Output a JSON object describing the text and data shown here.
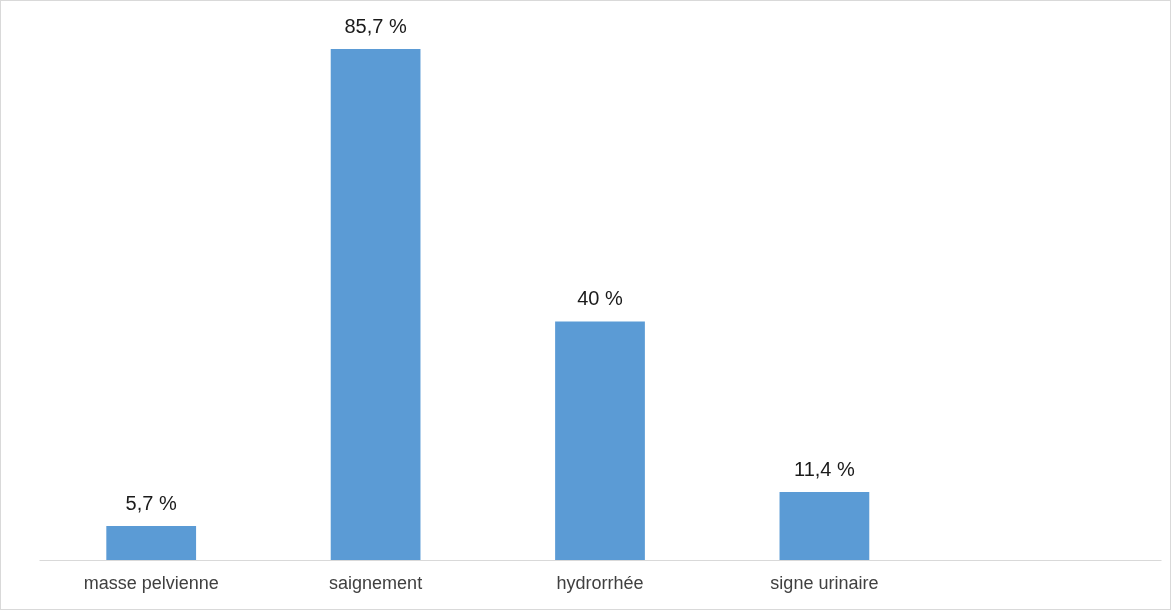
{
  "chart_data": {
    "type": "bar",
    "categories": [
      "masse pelvienne",
      "saignement",
      "hydrorrhée",
      "signe urinaire",
      null
    ],
    "values": [
      5.7,
      85.7,
      40,
      11.4,
      null
    ],
    "value_labels": [
      "5,7 %",
      "85,7 %",
      "40 %",
      "11,4 %",
      null
    ],
    "color": "#5b9bd5",
    "grid": false
  }
}
